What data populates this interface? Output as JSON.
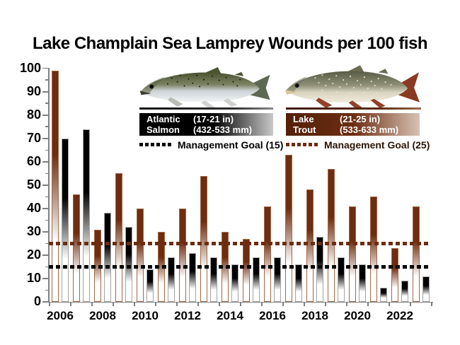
{
  "title": "Lake Champlain Sea Lamprey Wounds per 100 fish",
  "legend": {
    "atlantic_salmon": {
      "species_line1": "Atlantic",
      "species_line2": "Salmon",
      "size_in": "(17-21 in)",
      "size_mm": "(432-533 mm)",
      "goal_label": "Management Goal (15)",
      "goal_value": 15,
      "box_color": "#000000"
    },
    "lake_trout": {
      "species_line1": "Lake",
      "species_line2": "Trout",
      "size_in": "(21-25 in)",
      "size_mm": "(533-633 mm)",
      "goal_label": "Management Goal (25)",
      "goal_value": 25,
      "box_color": "#6b2d12"
    }
  },
  "chart_data": {
    "type": "bar",
    "title": "Lake Champlain Sea Lamprey Wounds per 100 fish",
    "categories": [
      "2006",
      "2007",
      "2008",
      "2009",
      "2010",
      "2011",
      "2012",
      "2013",
      "2014",
      "2015",
      "2016",
      "2017",
      "2018",
      "2019",
      "2020",
      "2021",
      "2022",
      "2023"
    ],
    "series": [
      {
        "name": "Lake Trout",
        "color": "#6e2c10",
        "outline": "#a06845",
        "values": [
          99,
          46,
          31,
          55,
          40,
          30,
          40,
          54,
          30,
          27,
          41,
          63,
          48,
          57,
          41,
          45,
          23,
          41
        ]
      },
      {
        "name": "Atlantic Salmon",
        "color": "#000000",
        "outline": "#a3a3a3",
        "values": [
          70,
          74,
          38,
          32,
          14,
          19,
          21,
          19,
          16,
          19,
          19,
          16,
          28,
          19,
          16,
          6,
          9,
          11
        ]
      }
    ],
    "goal_lines": [
      {
        "label": "Management Goal (15)",
        "value": 15,
        "color": "#000000"
      },
      {
        "label": "Management Goal (25)",
        "value": 25,
        "color": "#6b2d12"
      }
    ],
    "ylim": [
      0,
      100
    ],
    "yticks": [
      0,
      10,
      20,
      30,
      40,
      50,
      60,
      70,
      80,
      90,
      100
    ],
    "ytick_minor_step": 5,
    "xtick_labels": [
      "2006",
      "2008",
      "2010",
      "2012",
      "2014",
      "2016",
      "2018",
      "2020",
      "2022"
    ],
    "grid": false,
    "legend_position": "top-center"
  }
}
